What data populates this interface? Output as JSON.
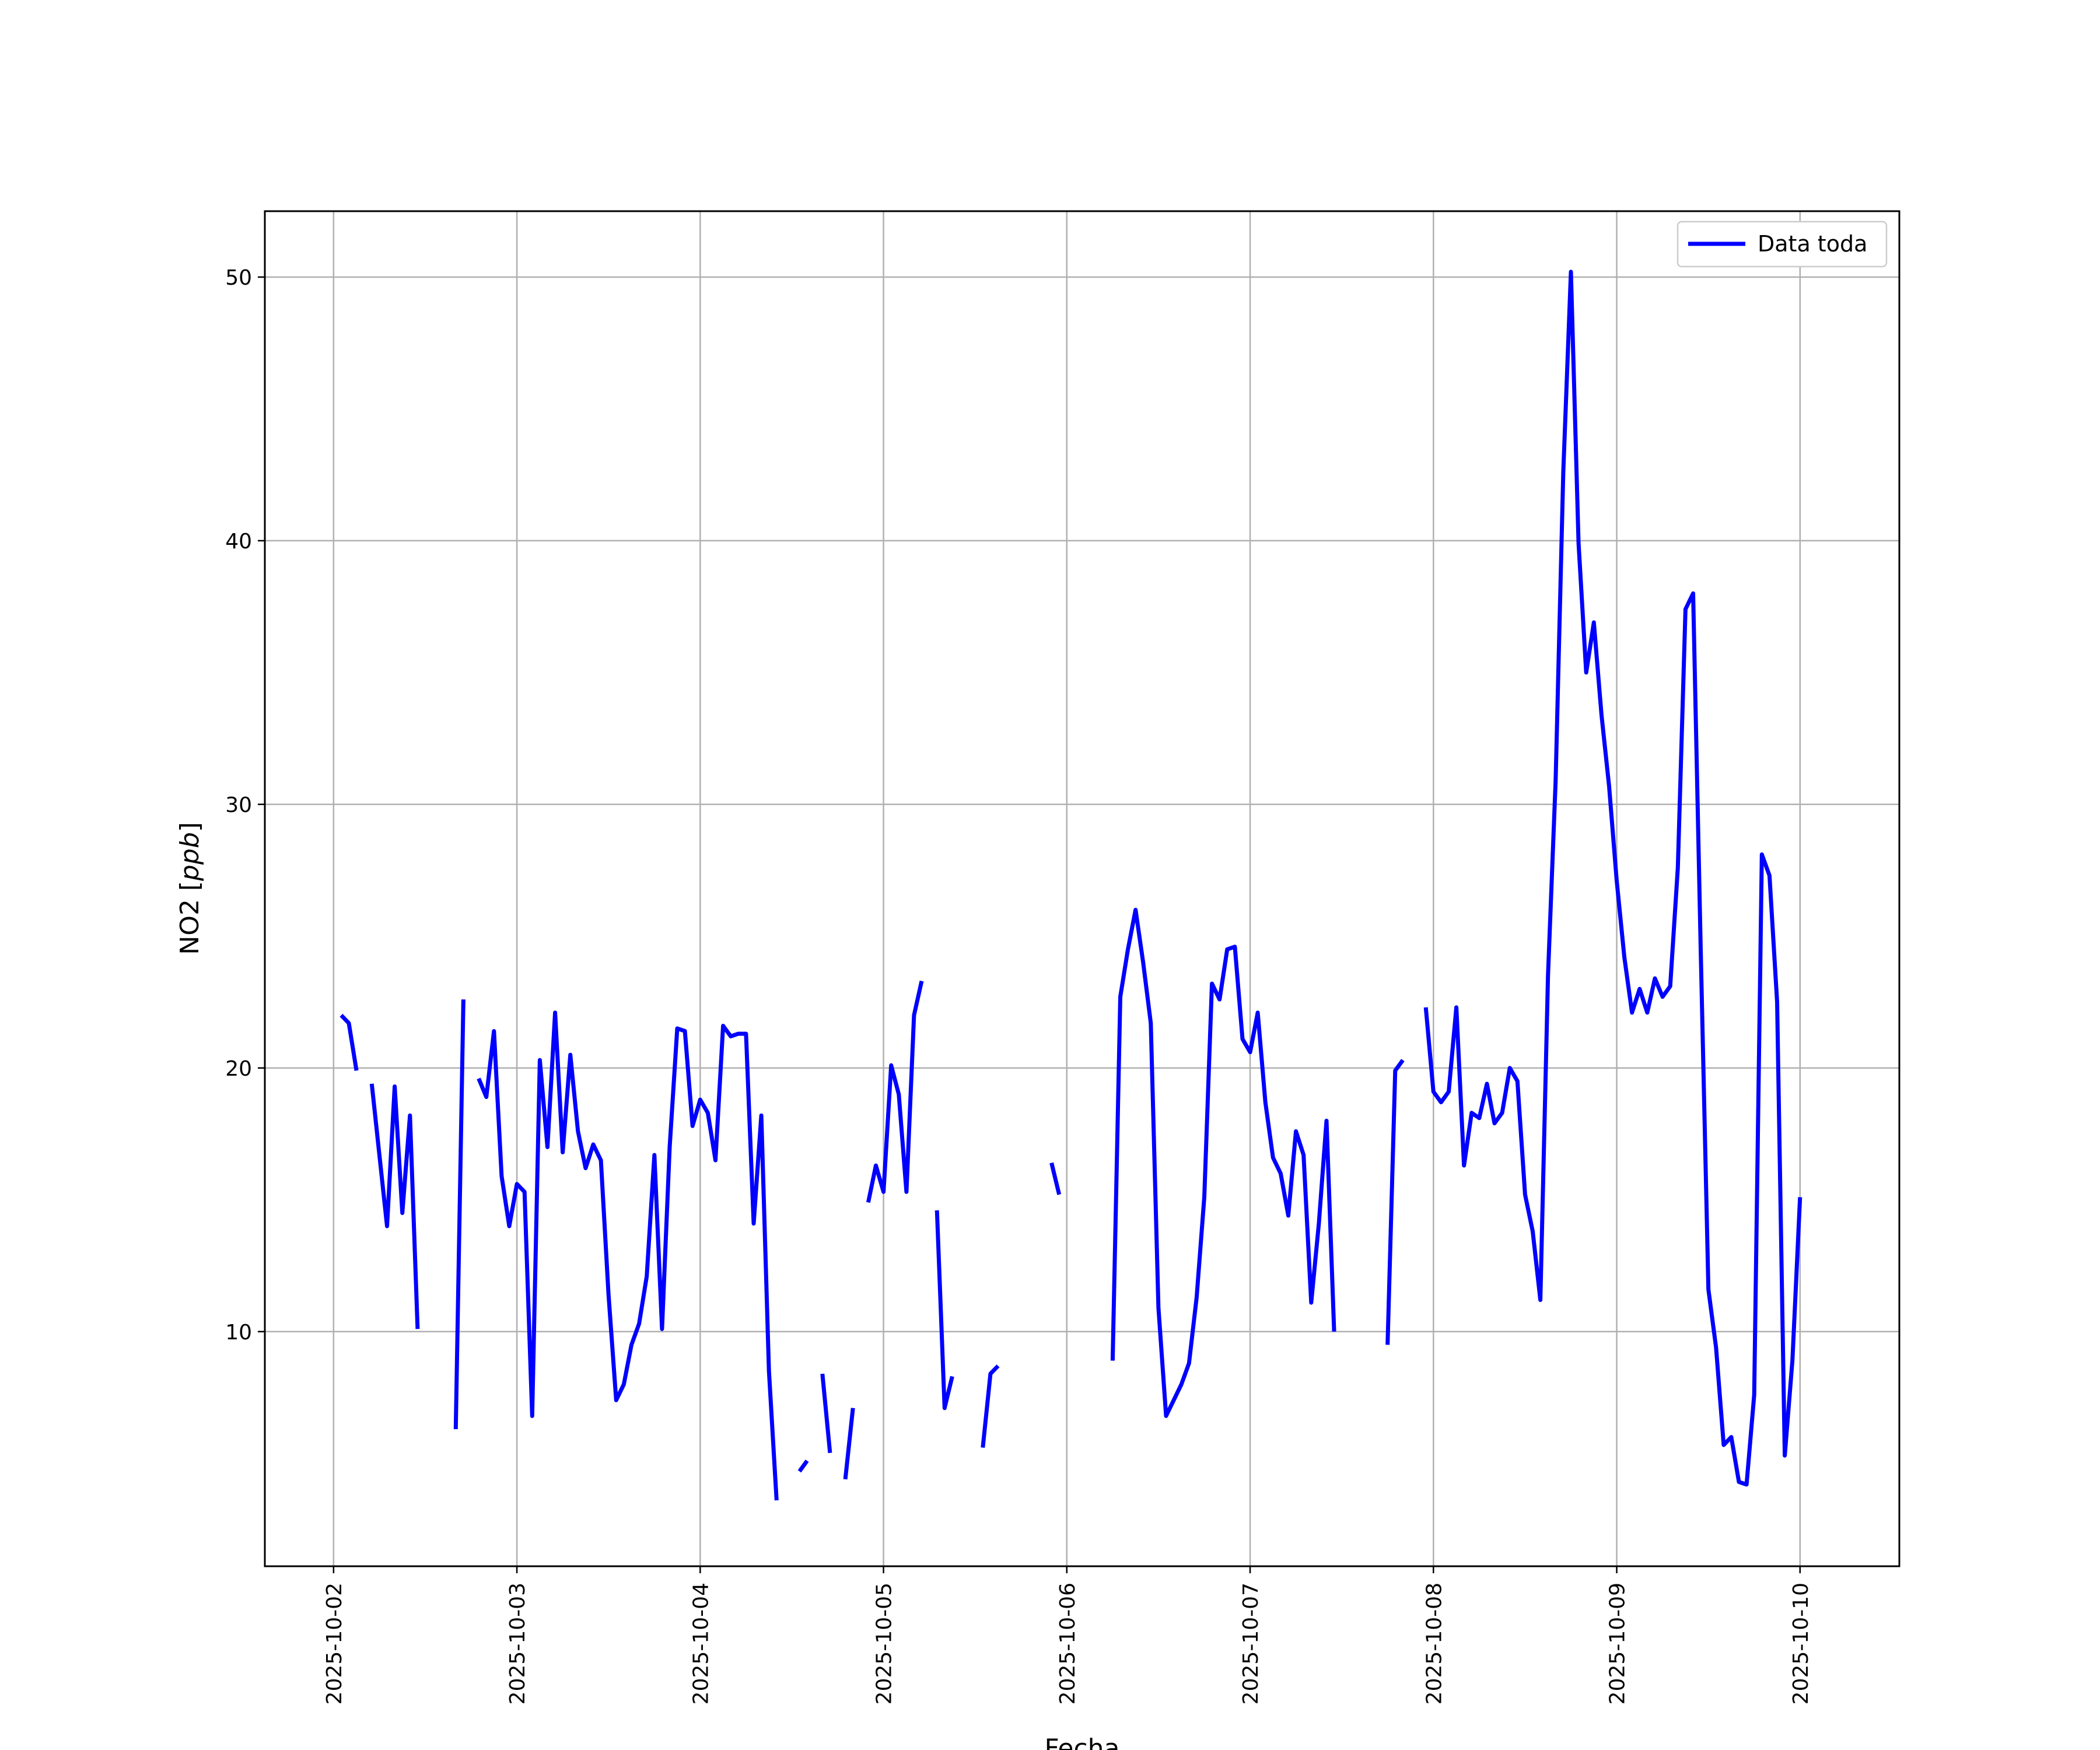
{
  "chart_data": {
    "type": "line",
    "title": "",
    "xlabel": "Fecha",
    "ylabel": "NO2 [",
    "ylabel_unit": "ppb",
    "ylabel_suffix": "]",
    "grid": true,
    "legend_position": "top-right",
    "xlim": [
      "2025-10-01 15:00",
      "2025-10-10 13:00"
    ],
    "ylim": [
      1.1,
      52.5
    ],
    "x_ticks": [
      "2025-10-02",
      "2025-10-03",
      "2025-10-04",
      "2025-10-05",
      "2025-10-06",
      "2025-10-07",
      "2025-10-08",
      "2025-10-09",
      "2025-10-10"
    ],
    "y_ticks": [
      "10",
      "20",
      "30",
      "40",
      "50"
    ],
    "series": [
      {
        "name": "Data toda",
        "color": "#0000ff",
        "points": [
          [
            "2025-10-02 01:00",
            22.0
          ],
          [
            "2025-10-02 02:00",
            21.7
          ],
          [
            "2025-10-02 03:00",
            19.9
          ],
          [
            "2025-10-02 04:00",
            null
          ],
          [
            "2025-10-02 05:00",
            19.4
          ],
          [
            "2025-10-02 06:00",
            16.7
          ],
          [
            "2025-10-02 07:00",
            14.0
          ],
          [
            "2025-10-02 08:00",
            19.3
          ],
          [
            "2025-10-02 09:00",
            14.5
          ],
          [
            "2025-10-02 10:00",
            18.2
          ],
          [
            "2025-10-02 11:00",
            10.1
          ],
          [
            "2025-10-02 12:00",
            null
          ],
          [
            "2025-10-02 16:00",
            6.3
          ],
          [
            "2025-10-02 17:00",
            22.6
          ],
          [
            "2025-10-02 18:00",
            null
          ],
          [
            "2025-10-02 19:00",
            19.6
          ],
          [
            "2025-10-02 20:00",
            18.9
          ],
          [
            "2025-10-02 21:00",
            21.4
          ],
          [
            "2025-10-02 22:00",
            15.9
          ],
          [
            "2025-10-02 23:00",
            14.0
          ],
          [
            "2025-10-03 00:00",
            15.6
          ],
          [
            "2025-10-03 01:00",
            15.3
          ],
          [
            "2025-10-03 02:00",
            6.8
          ],
          [
            "2025-10-03 03:00",
            20.3
          ],
          [
            "2025-10-03 04:00",
            17.0
          ],
          [
            "2025-10-03 05:00",
            22.1
          ],
          [
            "2025-10-03 06:00",
            16.8
          ],
          [
            "2025-10-03 07:00",
            20.5
          ],
          [
            "2025-10-03 08:00",
            17.6
          ],
          [
            "2025-10-03 09:00",
            16.2
          ],
          [
            "2025-10-03 10:00",
            17.1
          ],
          [
            "2025-10-03 11:00",
            16.5
          ],
          [
            "2025-10-03 12:00",
            11.4
          ],
          [
            "2025-10-03 13:00",
            7.4
          ],
          [
            "2025-10-03 14:00",
            8.0
          ],
          [
            "2025-10-03 15:00",
            9.5
          ],
          [
            "2025-10-03 16:00",
            10.3
          ],
          [
            "2025-10-03 17:00",
            12.1
          ],
          [
            "2025-10-03 18:00",
            16.7
          ],
          [
            "2025-10-03 19:00",
            10.1
          ],
          [
            "2025-10-03 20:00",
            17.0
          ],
          [
            "2025-10-03 21:00",
            21.5
          ],
          [
            "2025-10-03 22:00",
            21.4
          ],
          [
            "2025-10-03 23:00",
            17.8
          ],
          [
            "2025-10-04 00:00",
            18.8
          ],
          [
            "2025-10-04 01:00",
            18.3
          ],
          [
            "2025-10-04 02:00",
            16.5
          ],
          [
            "2025-10-04 03:00",
            21.6
          ],
          [
            "2025-10-04 04:00",
            21.2
          ],
          [
            "2025-10-04 05:00",
            21.3
          ],
          [
            "2025-10-04 06:00",
            21.3
          ],
          [
            "2025-10-04 07:00",
            14.1
          ],
          [
            "2025-10-04 08:00",
            18.2
          ],
          [
            "2025-10-04 09:00",
            8.5
          ],
          [
            "2025-10-04 10:00",
            3.6
          ],
          [
            "2025-10-04 11:00",
            null
          ],
          [
            "2025-10-04 13:00",
            4.7
          ],
          [
            "2025-10-04 14:00",
            5.1
          ],
          [
            "2025-10-04 15:00",
            null
          ],
          [
            "2025-10-04 16:00",
            8.4
          ],
          [
            "2025-10-04 17:00",
            5.4
          ],
          [
            "2025-10-04 18:00",
            null
          ],
          [
            "2025-10-04 19:00",
            4.4
          ],
          [
            "2025-10-04 20:00",
            7.1
          ],
          [
            "2025-10-04 21:00",
            null
          ],
          [
            "2025-10-04 22:00",
            14.9
          ],
          [
            "2025-10-04 23:00",
            16.3
          ],
          [
            "2025-10-05 00:00",
            15.3
          ],
          [
            "2025-10-05 01:00",
            20.1
          ],
          [
            "2025-10-05 02:00",
            19.0
          ],
          [
            "2025-10-05 03:00",
            15.3
          ],
          [
            "2025-10-05 04:00",
            22.0
          ],
          [
            "2025-10-05 05:00",
            23.3
          ],
          [
            "2025-10-05 06:00",
            null
          ],
          [
            "2025-10-05 07:00",
            14.6
          ],
          [
            "2025-10-05 08:00",
            7.1
          ],
          [
            "2025-10-05 09:00",
            8.3
          ],
          [
            "2025-10-05 10:00",
            null
          ],
          [
            "2025-10-05 13:00",
            5.6
          ],
          [
            "2025-10-05 14:00",
            8.4
          ],
          [
            "2025-10-05 15:00",
            8.7
          ],
          [
            "2025-10-05 16:00",
            null
          ],
          [
            "2025-10-05 22:00",
            16.4
          ],
          [
            "2025-10-05 23:00",
            15.2
          ],
          [
            "2025-10-06 00:00",
            null
          ],
          [
            "2025-10-06 06:00",
            8.9
          ],
          [
            "2025-10-06 07:00",
            22.7
          ],
          [
            "2025-10-06 08:00",
            24.5
          ],
          [
            "2025-10-06 09:00",
            26.0
          ],
          [
            "2025-10-06 10:00",
            24.0
          ],
          [
            "2025-10-06 11:00",
            21.7
          ],
          [
            "2025-10-06 12:00",
            10.9
          ],
          [
            "2025-10-06 13:00",
            6.8
          ],
          [
            "2025-10-06 14:00",
            7.4
          ],
          [
            "2025-10-06 15:00",
            8.0
          ],
          [
            "2025-10-06 16:00",
            8.8
          ],
          [
            "2025-10-06 17:00",
            11.3
          ],
          [
            "2025-10-06 18:00",
            15.1
          ],
          [
            "2025-10-06 19:00",
            23.2
          ],
          [
            "2025-10-06 20:00",
            22.6
          ],
          [
            "2025-10-06 21:00",
            24.5
          ],
          [
            "2025-10-06 22:00",
            24.6
          ],
          [
            "2025-10-06 23:00",
            21.1
          ],
          [
            "2025-10-07 00:00",
            20.6
          ],
          [
            "2025-10-07 01:00",
            22.1
          ],
          [
            "2025-10-07 02:00",
            18.7
          ],
          [
            "2025-10-07 03:00",
            16.6
          ],
          [
            "2025-10-07 04:00",
            16.0
          ],
          [
            "2025-10-07 05:00",
            14.4
          ],
          [
            "2025-10-07 06:00",
            17.6
          ],
          [
            "2025-10-07 07:00",
            16.7
          ],
          [
            "2025-10-07 08:00",
            11.1
          ],
          [
            "2025-10-07 09:00",
            14.1
          ],
          [
            "2025-10-07 10:00",
            18.0
          ],
          [
            "2025-10-07 11:00",
            10.0
          ],
          [
            "2025-10-07 12:00",
            null
          ],
          [
            "2025-10-07 18:00",
            9.5
          ],
          [
            "2025-10-07 19:00",
            19.9
          ],
          [
            "2025-10-07 20:00",
            20.3
          ],
          [
            "2025-10-07 21:00",
            null
          ],
          [
            "2025-10-07 23:00",
            22.3
          ],
          [
            "2025-10-08 00:00",
            19.1
          ],
          [
            "2025-10-08 01:00",
            18.7
          ],
          [
            "2025-10-08 02:00",
            19.1
          ],
          [
            "2025-10-08 03:00",
            22.3
          ],
          [
            "2025-10-08 04:00",
            16.3
          ],
          [
            "2025-10-08 05:00",
            18.3
          ],
          [
            "2025-10-08 06:00",
            18.1
          ],
          [
            "2025-10-08 07:00",
            19.4
          ],
          [
            "2025-10-08 08:00",
            17.9
          ],
          [
            "2025-10-08 09:00",
            18.3
          ],
          [
            "2025-10-08 10:00",
            20.0
          ],
          [
            "2025-10-08 11:00",
            19.5
          ],
          [
            "2025-10-08 12:00",
            15.2
          ],
          [
            "2025-10-08 13:00",
            13.8
          ],
          [
            "2025-10-08 14:00",
            11.2
          ],
          [
            "2025-10-08 15:00",
            23.5
          ],
          [
            "2025-10-08 16:00",
            30.9
          ],
          [
            "2025-10-08 17:00",
            42.6
          ],
          [
            "2025-10-08 18:00",
            50.2
          ],
          [
            "2025-10-08 19:00",
            39.9
          ],
          [
            "2025-10-08 20:00",
            35.0
          ],
          [
            "2025-10-08 21:00",
            36.9
          ],
          [
            "2025-10-08 22:00",
            33.4
          ],
          [
            "2025-10-08 23:00",
            30.7
          ],
          [
            "2025-10-09 00:00",
            27.1
          ],
          [
            "2025-10-09 01:00",
            24.2
          ],
          [
            "2025-10-09 02:00",
            22.1
          ],
          [
            "2025-10-09 03:00",
            23.0
          ],
          [
            "2025-10-09 04:00",
            22.1
          ],
          [
            "2025-10-09 05:00",
            23.4
          ],
          [
            "2025-10-09 06:00",
            22.7
          ],
          [
            "2025-10-09 07:00",
            23.1
          ],
          [
            "2025-10-09 08:00",
            27.6
          ],
          [
            "2025-10-09 09:00",
            37.4
          ],
          [
            "2025-10-09 10:00",
            38.0
          ],
          [
            "2025-10-09 11:00",
            24.4
          ],
          [
            "2025-10-09 12:00",
            11.6
          ],
          [
            "2025-10-09 13:00",
            9.4
          ],
          [
            "2025-10-09 14:00",
            5.7
          ],
          [
            "2025-10-09 15:00",
            6.0
          ],
          [
            "2025-10-09 16:00",
            4.3
          ],
          [
            "2025-10-09 17:00",
            4.2
          ],
          [
            "2025-10-09 18:00",
            7.6
          ],
          [
            "2025-10-09 19:00",
            28.1
          ],
          [
            "2025-10-09 20:00",
            27.3
          ],
          [
            "2025-10-09 21:00",
            22.5
          ],
          [
            "2025-10-09 22:00",
            5.3
          ],
          [
            "2025-10-09 23:00",
            8.9
          ],
          [
            "2025-10-10 00:00",
            15.1
          ]
        ]
      }
    ]
  }
}
